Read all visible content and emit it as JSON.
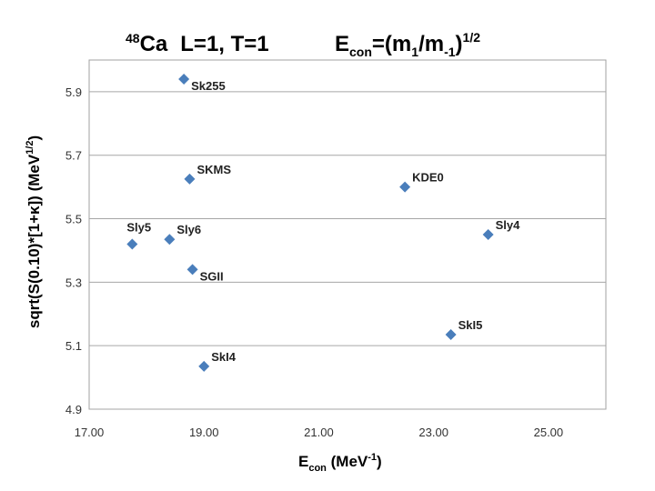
{
  "chart_data": {
    "type": "scatter",
    "title": {
      "nucleus_sup": "48",
      "nucleus": "Ca",
      "quantum_numbers": "L=1, T=1",
      "formula_lhs_main": "E",
      "formula_lhs_sub": "con",
      "formula_mid1": "=(m",
      "formula_sub1": "1",
      "formula_mid2": "/m",
      "formula_sub2": "-1",
      "formula_mid3": ")",
      "formula_sup": "1/2"
    },
    "xlabel": {
      "main": "E",
      "sub": "con",
      "rest": " (MeV",
      "sup": "-1",
      "end": ")"
    },
    "ylabel": {
      "main": "sqrt(S(0.10)*[1+κ])  (MeV",
      "sup": "1/2",
      "end": ")"
    },
    "xlim": [
      17.0,
      26.0
    ],
    "ylim": [
      4.9,
      6.0
    ],
    "xticks": [
      "17.00",
      "19.00",
      "21.00",
      "23.00",
      "25.00"
    ],
    "yticks": [
      "4.9",
      "5.1",
      "5.3",
      "5.5",
      "5.7",
      "5.9"
    ],
    "grid": "horizontal",
    "marker_color": "#4a7ebb",
    "points": [
      {
        "label": "Sk255",
        "x": 18.65,
        "y": 5.94,
        "pos": "right-below"
      },
      {
        "label": "SKMS",
        "x": 18.75,
        "y": 5.625,
        "pos": "right-above"
      },
      {
        "label": "KDE0",
        "x": 22.5,
        "y": 5.6,
        "pos": "right-above"
      },
      {
        "label": "Sly5",
        "x": 17.75,
        "y": 5.42,
        "pos": "above-left"
      },
      {
        "label": "Sly6",
        "x": 18.4,
        "y": 5.435,
        "pos": "right-above"
      },
      {
        "label": "Sly4",
        "x": 23.95,
        "y": 5.45,
        "pos": "right-above"
      },
      {
        "label": "SGII",
        "x": 18.8,
        "y": 5.34,
        "pos": "right-below"
      },
      {
        "label": "SkI5",
        "x": 23.3,
        "y": 5.135,
        "pos": "right-above"
      },
      {
        "label": "SkI4",
        "x": 19.0,
        "y": 5.035,
        "pos": "right-above"
      }
    ]
  }
}
